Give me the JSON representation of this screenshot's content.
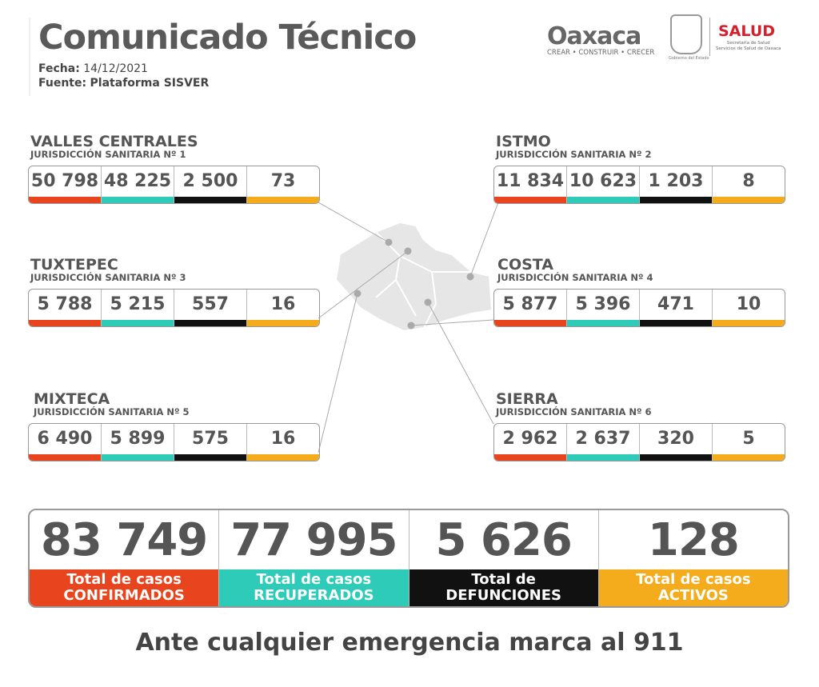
{
  "header": {
    "title": "Comunicado Técnico",
    "fecha_label": "Fecha:",
    "fecha": "14/12/2021",
    "fuente_label": "Fuente:",
    "fuente": "Plataforma SISVER"
  },
  "logos": {
    "oaxaca": "Oaxaca",
    "oaxaca_tagline": "CREAR • CONSTRUIR • CRECER",
    "gobierno": "Gobierno del Estado",
    "salud": "SALUD",
    "salud_sub1": "Secretaría de Salud",
    "salud_sub2": "Servicios de Salud de Oaxaca"
  },
  "colors": {
    "confirmados": "#e8441e",
    "recuperados": "#2ecbb8",
    "defunciones": "#111111",
    "activos": "#f5ac1c"
  },
  "regions": [
    {
      "name": "VALLES CENTRALES",
      "sub": "JURISDICCIÓN SANITARIA Nº 1",
      "values": [
        "50 798",
        "48 225",
        "2 500",
        "73"
      ]
    },
    {
      "name": "ISTMO",
      "sub": "JURISDICCIÓN SANITARIA Nº 2",
      "values": [
        "11 834",
        "10 623",
        "1 203",
        "8"
      ]
    },
    {
      "name": "TUXTEPEC",
      "sub": "JURISDICCIÓN SANITARIA Nº 3",
      "values": [
        "5 788",
        "5 215",
        "557",
        "16"
      ]
    },
    {
      "name": "COSTA",
      "sub": "JURISDICCIÓN SANITARIA Nº 4",
      "values": [
        "5 877",
        "5 396",
        "471",
        "10"
      ]
    },
    {
      "name": "MIXTECA",
      "sub": "JURISDICCIÓN SANITARIA Nº 5",
      "values": [
        "6 490",
        "5 899",
        "575",
        "16"
      ]
    },
    {
      "name": "SIERRA",
      "sub": "JURISDICCIÓN SANITARIA Nº 6",
      "values": [
        "2 962",
        "2 637",
        "320",
        "5"
      ]
    }
  ],
  "totals": [
    {
      "value": "83 749",
      "line1": "Total de casos",
      "line2": "CONFIRMADOS"
    },
    {
      "value": "77 995",
      "line1": "Total de casos",
      "line2": "RECUPERADOS"
    },
    {
      "value": "5 626",
      "line1": "Total de",
      "line2": "DEFUNCIONES"
    },
    {
      "value": "128",
      "line1": "Total de casos",
      "line2": "ACTIVOS"
    }
  ],
  "footer": "Ante cualquier emergencia marca al 911"
}
